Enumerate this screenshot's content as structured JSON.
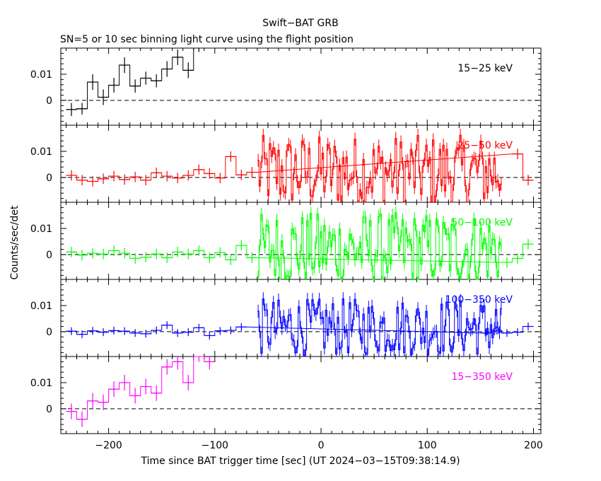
{
  "chart_data": {
    "type": "line",
    "title": "Swift−BAT GRB",
    "subtitle": "SN=5 or 10 sec binning light curve using the flight position",
    "xlabel": "Time since BAT trigger time [sec] (UT 2024−03−15T09:38:14.9)",
    "ylabel": "Counts/sec/det",
    "xlim": [
      -245,
      207
    ],
    "ylim": [
      -0.0095,
      0.02
    ],
    "x_ticks": [
      -200,
      -100,
      0,
      100,
      200
    ],
    "x_tick_labels": [
      "−200",
      "−100",
      "0",
      "100",
      "200"
    ],
    "y_ticks": [
      0,
      0.01
    ],
    "y_tick_labels": [
      "0",
      "0.01"
    ],
    "panels": [
      {
        "name": "15−25 keV",
        "color": "#000000",
        "series": [
          {
            "x": -235,
            "y": -0.0035,
            "err": 0.0025
          },
          {
            "x": -225,
            "y": -0.0032,
            "err": 0.0022
          },
          {
            "x": -215,
            "y": 0.007,
            "err": 0.003
          },
          {
            "x": -205,
            "y": 0.0012,
            "err": 0.003
          },
          {
            "x": -195,
            "y": 0.0058,
            "err": 0.0028
          },
          {
            "x": -185,
            "y": 0.0135,
            "err": 0.003
          },
          {
            "x": -175,
            "y": 0.0055,
            "err": 0.0025
          },
          {
            "x": -165,
            "y": 0.0085,
            "err": 0.0025
          },
          {
            "x": -155,
            "y": 0.0075,
            "err": 0.0025
          },
          {
            "x": -145,
            "y": 0.012,
            "err": 0.003
          },
          {
            "x": -135,
            "y": 0.0165,
            "err": 0.003
          },
          {
            "x": -125,
            "y": 0.0115,
            "err": 0.003
          },
          {
            "x": -115,
            "y": 0.0215,
            "err": 0.003
          }
        ]
      },
      {
        "name": "25−50 keV",
        "color": "#ff0000",
        "series": [
          {
            "x": -235,
            "y": 0.0008,
            "err": 0.002
          },
          {
            "x": -225,
            "y": -0.001,
            "err": 0.002
          },
          {
            "x": -215,
            "y": -0.0015,
            "err": 0.002
          },
          {
            "x": -205,
            "y": -0.0005,
            "err": 0.002
          },
          {
            "x": -195,
            "y": 0.0005,
            "err": 0.002
          },
          {
            "x": -185,
            "y": -0.0008,
            "err": 0.002
          },
          {
            "x": -175,
            "y": 0.0002,
            "err": 0.002
          },
          {
            "x": -165,
            "y": -0.001,
            "err": 0.002
          },
          {
            "x": -155,
            "y": 0.0018,
            "err": 0.002
          },
          {
            "x": -145,
            "y": 0.0005,
            "err": 0.002
          },
          {
            "x": -135,
            "y": -0.0002,
            "err": 0.002
          },
          {
            "x": -125,
            "y": 0.0008,
            "err": 0.002
          },
          {
            "x": -115,
            "y": 0.003,
            "err": 0.002
          },
          {
            "x": -105,
            "y": 0.0015,
            "err": 0.002
          },
          {
            "x": -95,
            "y": -0.0002,
            "err": 0.002
          },
          {
            "x": -85,
            "y": 0.008,
            "err": 0.002
          },
          {
            "x": -75,
            "y": 0.001,
            "err": 0.002
          },
          {
            "x": -65,
            "y": 0.002,
            "err": 0.002
          },
          {
            "x": 185,
            "y": 0.009,
            "err": 0.002
          },
          {
            "x": 195,
            "y": -0.001,
            "err": 0.002
          }
        ]
      },
      {
        "name": "50−100 keV",
        "color": "#00ff00",
        "series": [
          {
            "x": -235,
            "y": 0.001,
            "err": 0.002
          },
          {
            "x": -225,
            "y": -0.0002,
            "err": 0.002
          },
          {
            "x": -215,
            "y": 0.0005,
            "err": 0.002
          },
          {
            "x": -205,
            "y": 0.0002,
            "err": 0.002
          },
          {
            "x": -195,
            "y": 0.0015,
            "err": 0.002
          },
          {
            "x": -185,
            "y": 0.0005,
            "err": 0.002
          },
          {
            "x": -175,
            "y": -0.0015,
            "err": 0.002
          },
          {
            "x": -165,
            "y": -0.001,
            "err": 0.002
          },
          {
            "x": -155,
            "y": 0.0002,
            "err": 0.002
          },
          {
            "x": -145,
            "y": -0.0012,
            "err": 0.002
          },
          {
            "x": -135,
            "y": 0.001,
            "err": 0.002
          },
          {
            "x": -125,
            "y": 0.0002,
            "err": 0.002
          },
          {
            "x": -115,
            "y": 0.0015,
            "err": 0.002
          },
          {
            "x": -105,
            "y": -0.0012,
            "err": 0.002
          },
          {
            "x": -95,
            "y": 0.0008,
            "err": 0.002
          },
          {
            "x": -85,
            "y": -0.002,
            "err": 0.002
          },
          {
            "x": -75,
            "y": 0.0035,
            "err": 0.002
          },
          {
            "x": -65,
            "y": -0.0012,
            "err": 0.002
          },
          {
            "x": 175,
            "y": -0.003,
            "err": 0.002
          },
          {
            "x": 185,
            "y": -0.0015,
            "err": 0.002
          },
          {
            "x": 195,
            "y": 0.004,
            "err": 0.002
          }
        ]
      },
      {
        "name": "100−350 keV",
        "color": "#0000ff",
        "series": [
          {
            "x": -235,
            "y": 0.0002,
            "err": 0.0015
          },
          {
            "x": -225,
            "y": -0.001,
            "err": 0.0015
          },
          {
            "x": -215,
            "y": 0.0003,
            "err": 0.0015
          },
          {
            "x": -205,
            "y": -0.0002,
            "err": 0.0015
          },
          {
            "x": -195,
            "y": 0.0004,
            "err": 0.0015
          },
          {
            "x": -185,
            "y": 0.0002,
            "err": 0.0015
          },
          {
            "x": -175,
            "y": -0.0005,
            "err": 0.0015
          },
          {
            "x": -165,
            "y": -0.0008,
            "err": 0.0015
          },
          {
            "x": -155,
            "y": 0.0005,
            "err": 0.0015
          },
          {
            "x": -145,
            "y": 0.0025,
            "err": 0.0015
          },
          {
            "x": -135,
            "y": -0.0005,
            "err": 0.0015
          },
          {
            "x": -125,
            "y": -0.0002,
            "err": 0.0015
          },
          {
            "x": -115,
            "y": 0.0015,
            "err": 0.0015
          },
          {
            "x": -105,
            "y": -0.0015,
            "err": 0.0015
          },
          {
            "x": -95,
            "y": 0.0003,
            "err": 0.0015
          },
          {
            "x": -85,
            "y": 0.0005,
            "err": 0.0015
          },
          {
            "x": -75,
            "y": 0.0018,
            "err": 0.0015
          },
          {
            "x": 155,
            "y": -0.0005,
            "err": 0.0015
          },
          {
            "x": 165,
            "y": 0.0005,
            "err": 0.0015
          },
          {
            "x": 175,
            "y": -0.0005,
            "err": 0.0015
          },
          {
            "x": 185,
            "y": -0.0002,
            "err": 0.0015
          },
          {
            "x": 195,
            "y": 0.002,
            "err": 0.0015
          }
        ]
      },
      {
        "name": "15−350 keV",
        "color": "#ff00ff",
        "series": [
          {
            "x": -235,
            "y": -0.001,
            "err": 0.003
          },
          {
            "x": -225,
            "y": -0.004,
            "err": 0.003
          },
          {
            "x": -215,
            "y": 0.003,
            "err": 0.003
          },
          {
            "x": -205,
            "y": 0.0025,
            "err": 0.003
          },
          {
            "x": -195,
            "y": 0.0075,
            "err": 0.003
          },
          {
            "x": -185,
            "y": 0.01,
            "err": 0.003
          },
          {
            "x": -175,
            "y": 0.005,
            "err": 0.003
          },
          {
            "x": -165,
            "y": 0.0085,
            "err": 0.003
          },
          {
            "x": -155,
            "y": 0.006,
            "err": 0.003
          },
          {
            "x": -145,
            "y": 0.016,
            "err": 0.003
          },
          {
            "x": -135,
            "y": 0.018,
            "err": 0.003
          },
          {
            "x": -125,
            "y": 0.01,
            "err": 0.003
          },
          {
            "x": -115,
            "y": 0.021,
            "err": 0.003
          },
          {
            "x": -105,
            "y": 0.018,
            "err": 0.003
          }
        ]
      }
    ],
    "dense_segment": {
      "x_start": -60,
      "x_end": 170,
      "bin_width": 1.6,
      "description": "variable emission region, values oscillate roughly within ±0.015"
    },
    "grid": false,
    "baseline_dashed_at_zero": true,
    "legend": "inside each panel, top-right"
  }
}
